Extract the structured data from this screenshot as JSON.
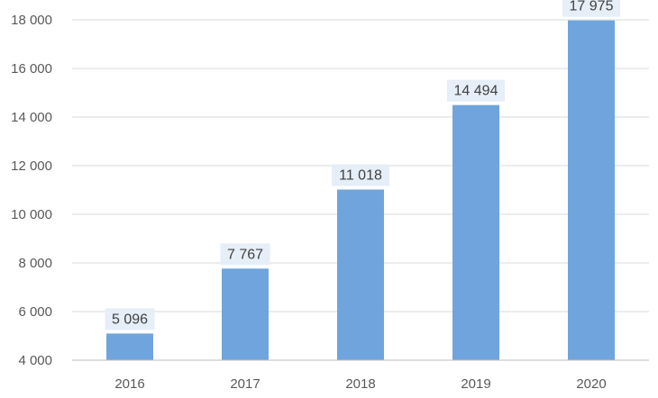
{
  "chart_data": {
    "type": "bar",
    "categories": [
      "2016",
      "2017",
      "2018",
      "2019",
      "2020"
    ],
    "values": [
      5096,
      7767,
      11018,
      14494,
      17975
    ],
    "data_labels": [
      "5 096",
      "7 767",
      "11 018",
      "14 494",
      "17 975"
    ],
    "y_ticks": [
      4000,
      6000,
      8000,
      10000,
      12000,
      14000,
      16000,
      18000
    ],
    "y_tick_labels": [
      "4 000",
      "6 000",
      "8 000",
      "10 000",
      "12 000",
      "14 000",
      "16 000",
      "18 000"
    ],
    "ylim": [
      4000,
      18000
    ],
    "grid": true,
    "legend": "none",
    "bar_color": "#6FA5DC",
    "label_box_color": "#E6EEF8",
    "grid_color": "#D9D9D9"
  }
}
